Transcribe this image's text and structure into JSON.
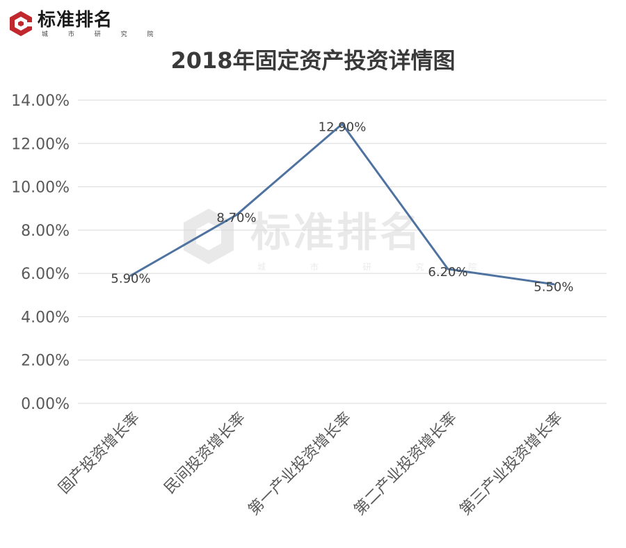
{
  "brand": {
    "name": "标准排名",
    "sub": "城 市 研 究 院",
    "color": "#c0282d"
  },
  "chart_data": {
    "type": "line",
    "title": "2018年固定资产投资详情图",
    "categories": [
      "固产投资增长率",
      "民间投资增长率",
      "第一产业投资增长率",
      "第二产业投资增长率",
      "第三产业投资增长率"
    ],
    "series": [
      {
        "values": [
          5.9,
          8.7,
          12.9,
          6.2,
          5.5
        ],
        "color": "#4f73a0"
      }
    ],
    "data_labels": [
      "5.90%",
      "8.70%",
      "12.90%",
      "6.20%",
      "5.50%"
    ],
    "ylim": [
      0,
      14
    ],
    "yticks": [
      "0.00%",
      "2.00%",
      "4.00%",
      "6.00%",
      "8.00%",
      "10.00%",
      "12.00%",
      "14.00%"
    ],
    "grid": true,
    "legend": "none"
  }
}
